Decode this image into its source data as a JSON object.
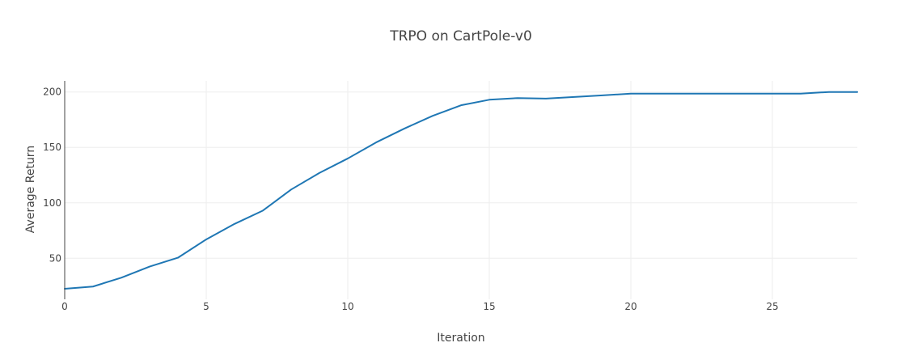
{
  "chart_data": {
    "type": "line",
    "title": "TRPO on CartPole-v0",
    "xlabel": "Iteration",
    "ylabel": "Average Return",
    "xlim": [
      0,
      28
    ],
    "ylim": [
      13,
      210
    ],
    "x_ticks": [
      0,
      5,
      10,
      15,
      20,
      25
    ],
    "y_ticks": [
      50,
      100,
      150,
      200
    ],
    "grid": true,
    "legend": "none",
    "series": [
      {
        "color": "#1f77b4",
        "x": [
          0,
          1,
          2,
          3,
          4,
          5,
          6,
          7,
          8,
          9,
          10,
          11,
          12,
          13,
          14,
          15,
          16,
          17,
          18,
          19,
          20,
          21,
          22,
          23,
          24,
          25,
          26,
          27,
          28
        ],
        "values": [
          22.5,
          24.5,
          32.5,
          42.5,
          50.5,
          67,
          81,
          93,
          112,
          127,
          140,
          154.5,
          167,
          178.5,
          188,
          193,
          194.5,
          194,
          195.5,
          197,
          198.5,
          198.5,
          198.5,
          198.5,
          198.5,
          198.5,
          198.5,
          200,
          200
        ]
      }
    ]
  }
}
